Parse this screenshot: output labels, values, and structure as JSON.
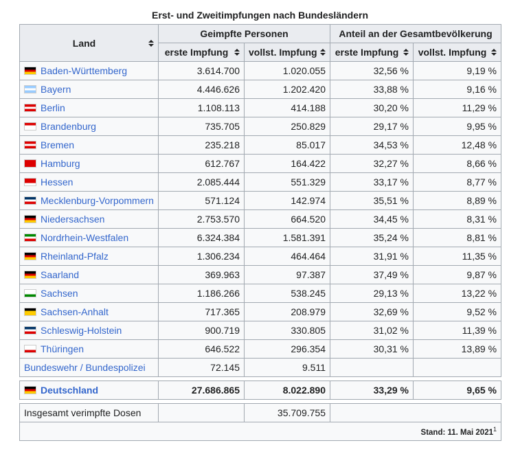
{
  "caption": "Erst- und Zweitimpfungen nach Bundesländern",
  "header": {
    "land": "Land",
    "geimpfte": "Geimpfte Personen",
    "anteil": "Anteil an der Gesamtbevölkerung",
    "erste": "erste Impfung",
    "vollst": "vollst. Impfung"
  },
  "rows": [
    [
      "Baden-Württemberg",
      "3.614.700",
      "1.020.055",
      "32,56 %",
      "9,19 %"
    ],
    [
      "Bayern",
      "4.446.626",
      "1.202.420",
      "33,88 %",
      "9,16 %"
    ],
    [
      "Berlin",
      "1.108.113",
      "414.188",
      "30,20 %",
      "11,29 %"
    ],
    [
      "Brandenburg",
      "735.705",
      "250.829",
      "29,17 %",
      "9,95 %"
    ],
    [
      "Bremen",
      "235.218",
      "85.017",
      "34,53 %",
      "12,48 %"
    ],
    [
      "Hamburg",
      "612.767",
      "164.422",
      "32,27 %",
      "8,66 %"
    ],
    [
      "Hessen",
      "2.085.444",
      "551.329",
      "33,17 %",
      "8,77 %"
    ],
    [
      "Mecklenburg-Vorpommern",
      "571.124",
      "142.974",
      "35,51 %",
      "8,89 %"
    ],
    [
      "Niedersachsen",
      "2.753.570",
      "664.520",
      "34,45 %",
      "8,31 %"
    ],
    [
      "Nordrhein-Westfalen",
      "6.324.384",
      "1.581.391",
      "35,24 %",
      "8,81 %"
    ],
    [
      "Rheinland-Pfalz",
      "1.306.234",
      "464.464",
      "31,91 %",
      "11,35 %"
    ],
    [
      "Saarland",
      "369.963",
      "97.387",
      "37,49 %",
      "9,87 %"
    ],
    [
      "Sachsen",
      "1.186.266",
      "538.245",
      "29,13 %",
      "13,22 %"
    ],
    [
      "Sachsen-Anhalt",
      "717.365",
      "208.979",
      "32,69 %",
      "9,52 %"
    ],
    [
      "Schleswig-Holstein",
      "900.719",
      "330.805",
      "31,02 %",
      "11,39 %"
    ],
    [
      "Thüringen",
      "646.522",
      "296.354",
      "30,31 %",
      "13,89 %"
    ],
    [
      "Bundeswehr / Bundespolizei",
      "72.145",
      "9.511"
    ]
  ],
  "total": [
    "Deutschland",
    "27.686.865",
    "8.022.890",
    "33,29 %",
    "9,65 %"
  ],
  "doses": {
    "label": "Insgesamt verimpfte Dosen",
    "value": "35.709.755"
  },
  "footer": {
    "text": "Stand: 11. Mai 2021",
    "note": "1"
  }
}
